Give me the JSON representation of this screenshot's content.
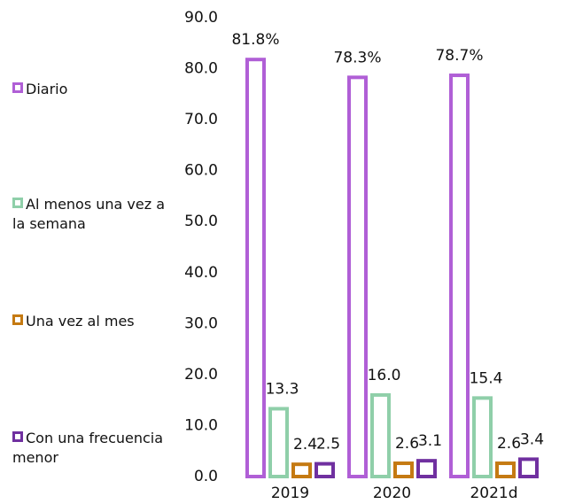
{
  "chart_data": {
    "type": "bar",
    "categories": [
      "2019",
      "2020",
      "2021d"
    ],
    "series": [
      {
        "name": "Diario",
        "color": "#b05fd6",
        "values": [
          81.8,
          78.3,
          78.7
        ],
        "value_labels": [
          "81.8%",
          "78.3%",
          "78.7%"
        ]
      },
      {
        "name": "Al menos una vez a la semana",
        "color": "#8fcfa9",
        "values": [
          13.3,
          16.0,
          15.4
        ],
        "value_labels": [
          "13.3",
          "16.0",
          "15.4"
        ]
      },
      {
        "name": "Una vez al mes",
        "color": "#c57a12",
        "values": [
          2.4,
          2.6,
          2.6
        ],
        "value_labels": [
          "2.4",
          "2.6",
          "2.6"
        ]
      },
      {
        "name": "Con una frecuencia menor",
        "color": "#7030a0",
        "values": [
          2.5,
          3.1,
          3.4
        ],
        "value_labels": [
          "2.5",
          "3.1",
          "3.4"
        ]
      }
    ],
    "ylim": [
      0,
      90
    ],
    "yticks": [
      {
        "value": 0,
        "label": "0.0"
      },
      {
        "value": 10,
        "label": "10.0"
      },
      {
        "value": 20,
        "label": "20.0"
      },
      {
        "value": 30,
        "label": "30.0"
      },
      {
        "value": 40,
        "label": "40.0"
      },
      {
        "value": 50,
        "label": "50.0"
      },
      {
        "value": 60,
        "label": "60.0"
      },
      {
        "value": 70,
        "label": "70.0"
      },
      {
        "value": 80,
        "label": "80.0"
      },
      {
        "value": 90,
        "label": "90.0"
      }
    ],
    "legend": "left",
    "grid": false
  }
}
